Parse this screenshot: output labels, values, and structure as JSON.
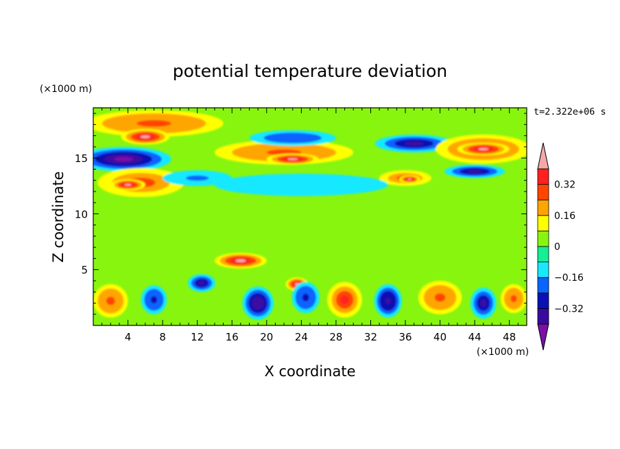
{
  "chart_data": {
    "type": "heatmap",
    "title": "potential temperature deviation",
    "xlabel": "X coordinate",
    "ylabel": "Z coordinate",
    "x_unit_label": "(×1000 m)",
    "y_unit_label": "(×1000 m)",
    "time_label": "t=2.322e+06 s",
    "xlim": [
      0,
      50
    ],
    "ylim": [
      0,
      19.5
    ],
    "x_ticks": [
      4,
      8,
      12,
      16,
      20,
      24,
      28,
      32,
      36,
      40,
      44,
      48
    ],
    "x_tick_labels": [
      "4",
      "8",
      "12",
      "16",
      "20",
      "24",
      "28",
      "32",
      "36",
      "40",
      "44",
      "48"
    ],
    "y_ticks": [
      5,
      10,
      15
    ],
    "y_tick_labels": [
      "5",
      "10",
      "15"
    ],
    "colorbar": {
      "levels": [
        -0.4,
        -0.32,
        -0.24,
        -0.16,
        -0.08,
        0,
        0.08,
        0.16,
        0.24,
        0.32,
        0.4
      ],
      "tick_values": [
        -0.32,
        -0.16,
        0,
        0.16,
        0.32
      ],
      "tick_labels": [
        "−0.32",
        "−0.16",
        "0",
        "0.16",
        "0.32"
      ],
      "colors": [
        "#7b0fa8",
        "#3a0aa0",
        "#0a10b4",
        "#0a64ff",
        "#19e8ff",
        "#13ef94",
        "#88f50f",
        "#ffff00",
        "#ffa500",
        "#ff4500",
        "#ff2020",
        "#f5a8a8"
      ],
      "extend": "both"
    },
    "background_color": "#88f50f",
    "features": [
      {
        "x": 3.5,
        "z": 14.9,
        "rx": 5.5,
        "rz": 1.1,
        "value": -0.44
      },
      {
        "x": 7,
        "z": 18.1,
        "rx": 8,
        "rz": 1.2,
        "value": 0.3
      },
      {
        "x": 6,
        "z": 16.9,
        "rx": 2.8,
        "rz": 0.7,
        "value": 0.44
      },
      {
        "x": 5.5,
        "z": 12.8,
        "rx": 5,
        "rz": 1.3,
        "value": 0.28
      },
      {
        "x": 4,
        "z": 12.6,
        "rx": 2,
        "rz": 0.5,
        "value": 0.44
      },
      {
        "x": 22,
        "z": 15.5,
        "rx": 8,
        "rz": 1.1,
        "value": 0.3
      },
      {
        "x": 23,
        "z": 14.9,
        "rx": 3,
        "rz": 0.5,
        "value": 0.44
      },
      {
        "x": 23,
        "z": 16.8,
        "rx": 5,
        "rz": 0.7,
        "value": -0.24
      },
      {
        "x": 37,
        "z": 16.3,
        "rx": 4.5,
        "rz": 0.8,
        "value": -0.36
      },
      {
        "x": 45,
        "z": 15.8,
        "rx": 5.5,
        "rz": 1.3,
        "value": 0.32
      },
      {
        "x": 45,
        "z": 15.8,
        "rx": 3,
        "rz": 0.6,
        "value": 0.44
      },
      {
        "x": 44,
        "z": 13.8,
        "rx": 3.5,
        "rz": 0.6,
        "value": -0.36
      },
      {
        "x": 36,
        "z": 13.2,
        "rx": 3,
        "rz": 0.7,
        "value": 0.28
      },
      {
        "x": 36.5,
        "z": 13.1,
        "rx": 1.2,
        "rz": 0.35,
        "value": 0.44
      },
      {
        "x": 12,
        "z": 13.2,
        "rx": 4,
        "rz": 0.7,
        "value": -0.22
      },
      {
        "x": 24,
        "z": 12.6,
        "rx": 10,
        "rz": 1.0,
        "value": -0.12
      },
      {
        "x": 17,
        "z": 5.8,
        "rx": 3,
        "rz": 0.7,
        "value": 0.44
      },
      {
        "x": 23.5,
        "z": 3.7,
        "rx": 1.3,
        "rz": 0.6,
        "value": 0.44
      },
      {
        "x": 2,
        "z": 2.2,
        "rx": 2,
        "rz": 1.5,
        "value": 0.3
      },
      {
        "x": 7,
        "z": 2.3,
        "rx": 1.5,
        "rz": 1.3,
        "value": -0.3
      },
      {
        "x": 12.5,
        "z": 3.8,
        "rx": 1.6,
        "rz": 0.8,
        "value": -0.36
      },
      {
        "x": 19,
        "z": 2.0,
        "rx": 1.8,
        "rz": 1.5,
        "value": -0.4
      },
      {
        "x": 24.5,
        "z": 2.5,
        "rx": 1.6,
        "rz": 1.4,
        "value": -0.3
      },
      {
        "x": 29,
        "z": 2.3,
        "rx": 2,
        "rz": 1.6,
        "value": 0.32
      },
      {
        "x": 34,
        "z": 2.2,
        "rx": 1.6,
        "rz": 1.5,
        "value": -0.38
      },
      {
        "x": 40,
        "z": 2.5,
        "rx": 2.5,
        "rz": 1.5,
        "value": 0.3
      },
      {
        "x": 45,
        "z": 2.0,
        "rx": 1.5,
        "rz": 1.4,
        "value": -0.34
      },
      {
        "x": 48.5,
        "z": 2.4,
        "rx": 1.5,
        "rz": 1.3,
        "value": 0.3
      }
    ]
  }
}
